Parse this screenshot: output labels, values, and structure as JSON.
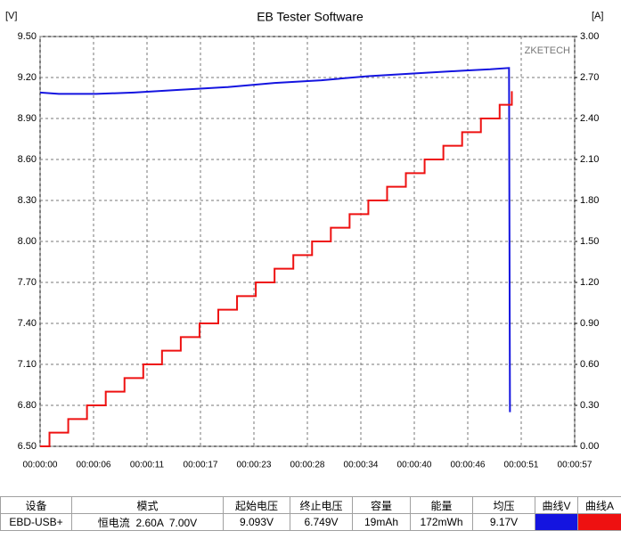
{
  "chart_data": {
    "type": "line",
    "title": "EB Tester Software",
    "y_unit": "[V]",
    "y2_unit": "[A]",
    "watermark": "ZKETECH",
    "xlim": [
      0,
      57
    ],
    "xticks": [
      {
        "value": 0,
        "label": "00:00:00"
      },
      {
        "value": 5.7,
        "label": "00:00:06"
      },
      {
        "value": 11.4,
        "label": "00:00:11"
      },
      {
        "value": 17.1,
        "label": "00:00:17"
      },
      {
        "value": 22.8,
        "label": "00:00:23"
      },
      {
        "value": 28.5,
        "label": "00:00:28"
      },
      {
        "value": 34.2,
        "label": "00:00:34"
      },
      {
        "value": 39.9,
        "label": "00:00:40"
      },
      {
        "value": 45.6,
        "label": "00:00:46"
      },
      {
        "value": 51.3,
        "label": "00:00:51"
      },
      {
        "value": 57,
        "label": "00:00:57"
      }
    ],
    "ylim": [
      6.5,
      9.5
    ],
    "yticks": [
      {
        "value": 6.5,
        "label": "6.50"
      },
      {
        "value": 6.8,
        "label": "6.80"
      },
      {
        "value": 7.1,
        "label": "7.10"
      },
      {
        "value": 7.4,
        "label": "7.40"
      },
      {
        "value": 7.7,
        "label": "7.70"
      },
      {
        "value": 8.0,
        "label": "8.00"
      },
      {
        "value": 8.3,
        "label": "8.30"
      },
      {
        "value": 8.6,
        "label": "8.60"
      },
      {
        "value": 8.9,
        "label": "8.90"
      },
      {
        "value": 9.2,
        "label": "9.20"
      },
      {
        "value": 9.5,
        "label": "9.50"
      }
    ],
    "y2lim": [
      0,
      3
    ],
    "y2ticks": [
      {
        "value": 0,
        "label": "0.00"
      },
      {
        "value": 0.3,
        "label": "0.30"
      },
      {
        "value": 0.6,
        "label": "0.60"
      },
      {
        "value": 0.9,
        "label": "0.90"
      },
      {
        "value": 1.2,
        "label": "1.20"
      },
      {
        "value": 1.5,
        "label": "1.50"
      },
      {
        "value": 1.8,
        "label": "1.80"
      },
      {
        "value": 2.1,
        "label": "2.10"
      },
      {
        "value": 2.4,
        "label": "2.40"
      },
      {
        "value": 2.7,
        "label": "2.70"
      },
      {
        "value": 3,
        "label": "3.00"
      }
    ],
    "grid": true,
    "series": [
      {
        "name": "曲线V",
        "color": "#1414e0",
        "step": false,
        "x": [
          0,
          2,
          6,
          10,
          15,
          20,
          25,
          30,
          35,
          40,
          45,
          48,
          50,
          50.1
        ],
        "values": [
          9.09,
          9.08,
          9.08,
          9.09,
          9.11,
          9.13,
          9.16,
          9.18,
          9.21,
          9.23,
          9.25,
          9.26,
          9.27,
          6.75
        ]
      },
      {
        "name": "曲线A",
        "color": "#ee1111",
        "axis": "y2",
        "step": true,
        "x": [
          0,
          1,
          3,
          5,
          7,
          9,
          11,
          13,
          15,
          17,
          19,
          21,
          23,
          25,
          27,
          29,
          31,
          33,
          35,
          37,
          39,
          41,
          43,
          45,
          47,
          49,
          50.3
        ],
        "values": [
          0,
          0.1,
          0.2,
          0.3,
          0.4,
          0.5,
          0.6,
          0.7,
          0.8,
          0.9,
          1.0,
          1.1,
          1.2,
          1.3,
          1.4,
          1.5,
          1.6,
          1.7,
          1.8,
          1.9,
          2.0,
          2.1,
          2.2,
          2.3,
          2.4,
          2.5,
          2.6
        ]
      }
    ]
  },
  "table": {
    "headers": [
      "设备",
      "模式",
      "起始电压",
      "终止电压",
      "容量",
      "能量",
      "均压",
      "曲线V",
      "曲线A"
    ],
    "rows": [
      [
        "EBD-USB+",
        "恒电流  2.60A  7.00V",
        "9.093V",
        "6.749V",
        "19mAh",
        "172mWh",
        "9.17V"
      ]
    ]
  }
}
